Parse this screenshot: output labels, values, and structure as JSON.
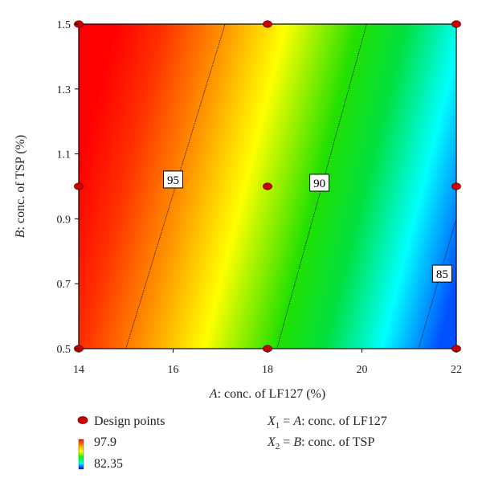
{
  "chart_data": {
    "type": "contour",
    "x_axis": {
      "label_italic": "A",
      "label_rest": ": conc. of LF127 (%)",
      "range": [
        14,
        22
      ],
      "ticks": [
        14,
        16,
        18,
        20,
        22
      ],
      "tick_labels": [
        "14",
        "16",
        "18",
        "20",
        "22"
      ]
    },
    "y_axis": {
      "label_italic": "B",
      "label_rest": ": conc. of TSP (%)",
      "range": [
        0.5,
        1.5
      ],
      "ticks": [
        0.5,
        0.7,
        0.9,
        1.1,
        1.3,
        1.5
      ],
      "tick_labels": [
        "0.5",
        "0.7",
        "0.9",
        "1.1",
        "1.3",
        "1.5"
      ]
    },
    "color_scale": {
      "max": "97.9",
      "min": "82.35",
      "max_value": 97.9,
      "min_value": 82.35,
      "colors": [
        "#ff0000",
        "#ff8000",
        "#ffff00",
        "#00ff00",
        "#00ffff",
        "#0000ff"
      ]
    },
    "contours": [
      {
        "label": "95",
        "value": 95,
        "start": [
          15.0,
          0.5
        ],
        "end": [
          17.1,
          1.5
        ],
        "label_pos": [
          16.0,
          1.02
        ]
      },
      {
        "label": "90",
        "value": 90,
        "start": [
          18.2,
          0.5
        ],
        "end": [
          20.1,
          1.5
        ],
        "label_pos": [
          19.1,
          1.01
        ]
      },
      {
        "label": "85",
        "value": 85,
        "start": [
          21.2,
          0.5
        ],
        "end": [
          22.0,
          0.9
        ],
        "label_pos": [
          21.7,
          0.73
        ]
      }
    ],
    "design_points": [
      {
        "x": 14,
        "y": 0.5
      },
      {
        "x": 14,
        "y": 1.0
      },
      {
        "x": 14,
        "y": 1.5
      },
      {
        "x": 18,
        "y": 0.5
      },
      {
        "x": 18,
        "y": 1.0
      },
      {
        "x": 18,
        "y": 1.5
      },
      {
        "x": 22,
        "y": 0.5
      },
      {
        "x": 22,
        "y": 1.0
      },
      {
        "x": 22,
        "y": 1.5
      }
    ],
    "design_points_color": "#cc0000",
    "legend": {
      "design_points_label": "Design points",
      "x1_sym": "X",
      "x1_sub": "1",
      "x1_eq": " = ",
      "x1_var": "A",
      "x1_desc": ": conc. of LF127",
      "x2_sym": "X",
      "x2_sub": "2",
      "x2_eq": " = ",
      "x2_var": "B",
      "x2_desc": ": conc. of TSP"
    }
  }
}
